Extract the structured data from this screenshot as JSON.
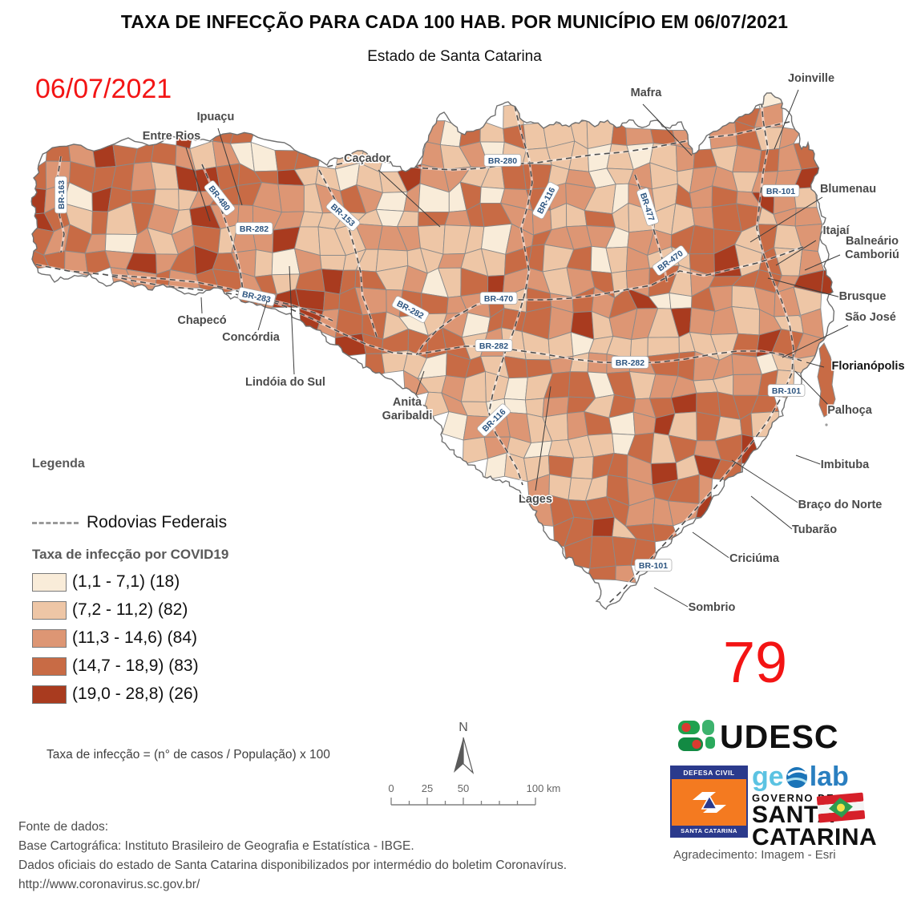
{
  "title": "TAXA DE INFECÇÃO PARA CADA 100 HAB. POR MUNICÍPIO EM 06/07/2021",
  "subtitle": "Estado de Santa Catarina",
  "date_overlay": "06/07/2021",
  "count_overlay": "79",
  "map": {
    "city_labels": [
      "Joinville",
      "Mafra",
      "Ipuaçu",
      "Entre Rios",
      "Caçador",
      "Blumenau",
      "Itajaí",
      "Balneário|Camboriú",
      "Brusque",
      "São José",
      "Florianópolis",
      "Palhoça",
      "Imbituba",
      "Braço do Norte",
      "Tubarão",
      "Criciúma",
      "Sombrio",
      "Lages",
      "Anita|Garibaldi",
      "Lindóia do Sul",
      "Concórdia",
      "Chapecó"
    ],
    "highway_shields": [
      "BR-163",
      "BR-480",
      "BR-282",
      "BR-153",
      "BR-280",
      "BR-116",
      "BR-477",
      "BR-470",
      "BR-283",
      "BR-282",
      "BR-470",
      "BR-282",
      "BR-282",
      "BR-116",
      "BR-101",
      "BR-101",
      "BR-101"
    ]
  },
  "legend": {
    "heading": "Legenda",
    "roads_label": "Rodovias Federais",
    "classes_heading": "Taxa de infecção por COVID19",
    "classes": [
      {
        "label": "(1,1 - 7,1) (18)",
        "color": "#f9ecd9"
      },
      {
        "label": "(7,2 - 11,2) (82)",
        "color": "#eec6a6"
      },
      {
        "label": "(11,3 - 14,6) (84)",
        "color": "#dd9674"
      },
      {
        "label": "(14,7 - 18,9) (83)",
        "color": "#c86b45"
      },
      {
        "label": "(19,0 - 28,8) (26)",
        "color": "#a93b1f"
      }
    ]
  },
  "formula": "Taxa de infecção = (n° de casos / População) x 100",
  "north_label": "N",
  "scale_bar": {
    "ticks": [
      "0",
      "25",
      "50"
    ],
    "end_label": "100 km"
  },
  "credits": {
    "fonte_heading": "Fonte de dados:",
    "line1": "Base Cartográfica: Instituto Brasileiro de Geografia e Estatística - IBGE.",
    "line2": "Dados oficiais do estado de Santa Catarina disponibilizados por intermédio do boletim Coronavírus.",
    "line3": "http://www.coronavirus.sc.gov.br/",
    "acknowledgment": "Agradecimento: Imagem - Esri"
  },
  "logos": {
    "udesc": "UDESC",
    "defesa_civil_top": "DEFESA CIVIL",
    "defesa_civil_bottom": "SANTA CATARINA",
    "geolab_ge": "ge",
    "geolab_lab": "lab",
    "governo_de": "GOVERNO DE",
    "governo_line1": "SANTA",
    "governo_line2": "CATARINA"
  },
  "colors": {
    "accent_red": "#f31414",
    "road": "#4d4d4d",
    "municipality_border": "#8a8a8a",
    "state_outline": "#707070",
    "shield_text": "#2d5580",
    "city_label": "#4a4a4a"
  }
}
